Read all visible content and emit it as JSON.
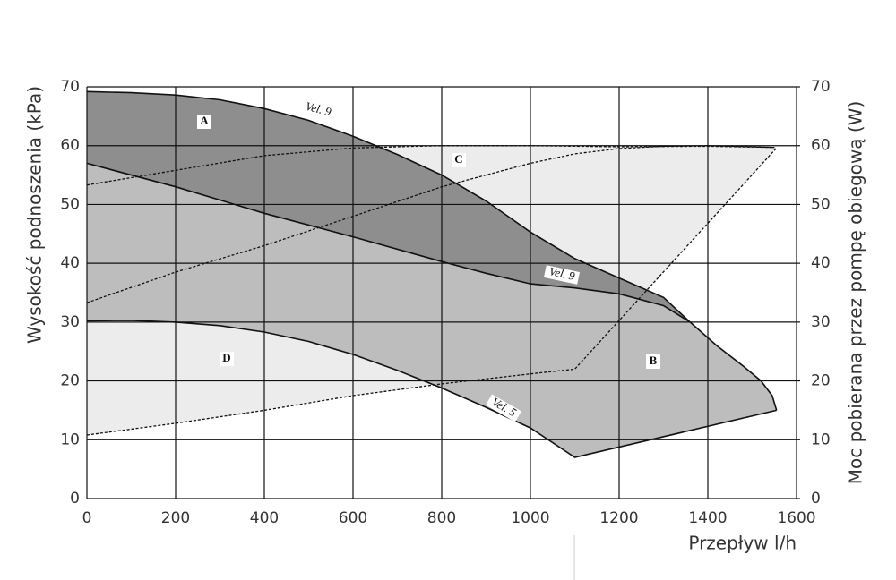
{
  "chart_data": {
    "type": "line",
    "ylabel": "Wysokość podnoszenia (kPa)",
    "y2label": "Moc pobierana przez pompę obiegową (W)",
    "xlabel": "Przepływ l/h",
    "xlim": [
      0,
      1600
    ],
    "xticks": [
      0,
      200,
      400,
      600,
      800,
      1000,
      1200,
      1400,
      1600
    ],
    "ylim": [
      0,
      70
    ],
    "yticks": [
      0,
      10,
      20,
      30,
      40,
      50,
      60,
      70
    ],
    "y2lim": [
      0,
      70
    ],
    "y2ticks": [
      0,
      10,
      20,
      30,
      40,
      50,
      60,
      70
    ],
    "grid": true,
    "annotations": [
      "A",
      "B",
      "C",
      "D"
    ],
    "series": [
      {
        "name": "Vel. 9",
        "color": "#111111",
        "style": "solid",
        "x": [
          0,
          100,
          200,
          300,
          400,
          500,
          600,
          700,
          800,
          900,
          1000,
          1100,
          1200,
          1300,
          1360,
          1420,
          1480,
          1520,
          1545,
          1555
        ],
        "values": [
          69.2,
          69,
          68.6,
          67.8,
          66.3,
          64.3,
          61.6,
          58.5,
          55,
          50.6,
          45.3,
          40.8,
          37.5,
          34.2,
          30,
          26,
          22.5,
          20,
          17.5,
          15
        ]
      },
      {
        "name": "Vel. 9",
        "color": "#111111",
        "style": "solid",
        "x": [
          0,
          200,
          400,
          600,
          800,
          900,
          1000,
          1100,
          1200,
          1300,
          1360
        ],
        "values": [
          57,
          53,
          48.5,
          44.5,
          40.3,
          38.3,
          36.5,
          35.8,
          34.8,
          32.8,
          30
        ]
      },
      {
        "name": "Vel. 5",
        "color": "#111111",
        "style": "solid",
        "x": [
          0,
          100,
          200,
          300,
          400,
          500,
          600,
          700,
          800,
          900,
          1000,
          1100,
          1555
        ],
        "values": [
          30.2,
          30.3,
          30,
          29.4,
          28.3,
          26.7,
          24.5,
          21.8,
          18.8,
          15.5,
          12,
          7,
          15
        ]
      },
      {
        "color": "#111111",
        "style": "dashed",
        "axis": "y2",
        "x": [
          0,
          200,
          400,
          600,
          800,
          1000,
          1200,
          1400,
          1550
        ],
        "values": [
          53.3,
          55.8,
          58.3,
          59.6,
          60,
          60,
          59.8,
          59.9,
          59.7
        ]
      },
      {
        "color": "#111111",
        "style": "dashed",
        "axis": "y2",
        "x": [
          0,
          200,
          400,
          600,
          800,
          1000,
          1100,
          1200,
          1300,
          1400,
          1550
        ],
        "values": [
          33.3,
          38.5,
          43,
          48,
          53,
          57,
          58.6,
          59.5,
          59.9,
          60,
          59.7
        ]
      },
      {
        "color": "#111111",
        "style": "dashed",
        "axis": "y2",
        "x": [
          0,
          200,
          400,
          600,
          800,
          1000,
          1100,
          1555
        ],
        "values": [
          10.8,
          12.8,
          15,
          17.5,
          19.5,
          21.2,
          22,
          59.6
        ]
      }
    ]
  }
}
